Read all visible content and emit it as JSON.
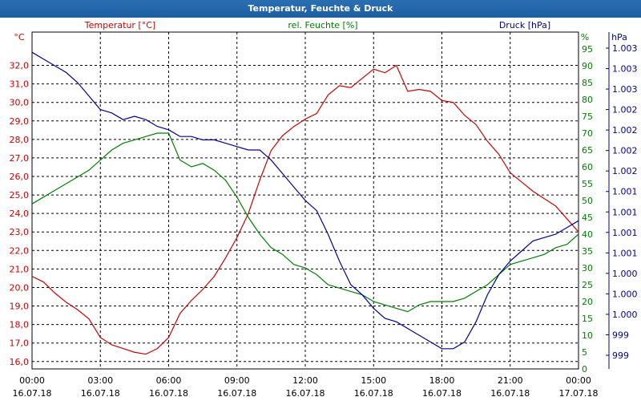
{
  "window": {
    "title": "Temperatur, Feuchte & Druck"
  },
  "colors": {
    "temperature": "#cc0000",
    "humidity": "#008000",
    "pressure": "#000099",
    "grid": "#000000",
    "titlebar": "#1d5fa0"
  },
  "chart_data": {
    "type": "line",
    "grid": true,
    "x": [
      "00:00",
      "03:00",
      "06:00",
      "09:00",
      "12:00",
      "15:00",
      "18:00",
      "21:00",
      "00:00"
    ],
    "xdates": [
      "16.07.18",
      "16.07.18",
      "16.07.18",
      "16.07.18",
      "16.07.18",
      "16.07.18",
      "16.07.18",
      "16.07.18",
      "17.07.18"
    ],
    "axes": {
      "temperature": {
        "label": "Temperatur [°C]",
        "unit": "°C",
        "ylim": [
          15.6,
          33.8
        ],
        "ticks": [
          "16,0",
          "17,0",
          "18,0",
          "19,0",
          "20,0",
          "21,0",
          "22,0",
          "23,0",
          "24,0",
          "25,0",
          "26,0",
          "27,0",
          "28,0",
          "29,0",
          "30,0",
          "31,0",
          "32,0"
        ]
      },
      "humidity": {
        "label": "rel. Feuchte [%]",
        "unit": "%",
        "ylim": [
          0,
          100
        ],
        "ticks": [
          "0",
          "5",
          "10",
          "15",
          "20",
          "25",
          "30",
          "35",
          "40",
          "45",
          "50",
          "55",
          "60",
          "65",
          "70",
          "75",
          "80",
          "85",
          "90",
          "95"
        ]
      },
      "pressure": {
        "label": "Druck [hPa]",
        "unit": "hPa",
        "ticks": [
          "999",
          "999",
          "1.000",
          "1.000",
          "1.000",
          "1.001",
          "1.001",
          "1.001",
          "1.001",
          "1.002",
          "1.002",
          "1.002",
          "1.002",
          "1.003",
          "1.003",
          "1.003"
        ]
      }
    },
    "series": [
      {
        "name": "Temperatur [°C]",
        "axis": "temperature",
        "x": [
          0,
          0.5,
          1,
          1.5,
          2,
          2.5,
          3,
          3.5,
          4,
          4.5,
          5,
          5.5,
          6,
          6.5,
          7,
          7.5,
          8,
          8.5,
          9,
          9.5,
          10,
          10.5,
          11,
          11.5,
          12,
          12.5,
          13,
          13.5,
          14,
          14.5,
          15,
          15.5,
          16,
          16.5,
          17,
          17.5,
          18,
          18.5,
          19,
          19.5,
          20,
          20.5,
          21,
          21.5,
          22,
          22.5,
          23,
          23.5,
          24
        ],
        "values": [
          20.6,
          20.3,
          19.7,
          19.2,
          18.8,
          18.3,
          17.3,
          16.9,
          16.7,
          16.5,
          16.4,
          16.7,
          17.3,
          18.6,
          19.3,
          19.9,
          20.6,
          21.6,
          22.7,
          24.0,
          25.8,
          27.4,
          28.2,
          28.7,
          29.1,
          29.4,
          30.4,
          30.9,
          30.8,
          31.3,
          31.8,
          31.6,
          32.0,
          30.6,
          30.7,
          30.6,
          30.1,
          30.0,
          29.3,
          28.8,
          27.9,
          27.2,
          26.2,
          25.7,
          25.2,
          24.8,
          24.4,
          23.7,
          23.0
        ]
      },
      {
        "name": "rel. Feuchte [%]",
        "axis": "humidity",
        "x": [
          0,
          0.5,
          1,
          1.5,
          2,
          2.5,
          3,
          3.5,
          4,
          4.5,
          5,
          5.5,
          6,
          6.5,
          7,
          7.5,
          8,
          8.5,
          9,
          9.5,
          10,
          10.5,
          11,
          11.5,
          12,
          12.5,
          13,
          13.5,
          14,
          14.5,
          15,
          15.5,
          16,
          16.5,
          17,
          17.5,
          18,
          18.5,
          19,
          19.5,
          20,
          20.5,
          21,
          21.5,
          22,
          22.5,
          23,
          23.5,
          24
        ],
        "values": [
          49,
          51,
          53,
          55,
          57,
          59,
          62,
          65,
          67,
          68,
          69,
          70,
          70,
          62,
          60,
          61,
          59,
          56,
          51,
          45,
          40,
          36,
          34,
          31,
          30,
          28,
          25,
          24,
          23,
          22,
          20,
          19,
          18,
          17,
          19,
          20,
          20,
          20,
          21,
          23,
          25,
          28,
          31,
          32,
          33,
          34,
          36,
          37,
          40
        ]
      },
      {
        "name": "Druck [hPa]",
        "x": [
          0,
          0.5,
          1,
          1.5,
          2,
          2.5,
          3,
          3.5,
          4,
          4.5,
          5,
          5.5,
          6,
          6.5,
          7,
          7.5,
          8,
          8.5,
          9,
          9.5,
          10,
          10.5,
          11,
          11.5,
          12,
          12.5,
          13,
          13.5,
          14,
          14.5,
          15,
          15.5,
          16,
          16.5,
          17,
          17.5,
          18,
          18.5,
          19,
          19.5,
          20,
          20.5,
          21,
          21.5,
          22,
          22.5,
          23,
          23.5,
          24
        ],
        "values": [
          1.003,
          1.003,
          1.003,
          1.003,
          1.003,
          1.002,
          1.002,
          1.002,
          1.002,
          1.002,
          1.002,
          1.002,
          1.002,
          1.002,
          1.002,
          1.002,
          1.002,
          1.002,
          1.002,
          1.002,
          1.002,
          1.002,
          1.001,
          1.001,
          1.001,
          1.001,
          1.001,
          1.001,
          1.0,
          1.0,
          1.0,
          999,
          999,
          999,
          999,
          999,
          999,
          999,
          999,
          999,
          1.0,
          1.0,
          1.0,
          1.0,
          1.001,
          1.001,
          1.001,
          1.001,
          1.001
        ],
        "level": [
          94,
          92,
          90,
          88,
          85,
          81,
          77,
          76,
          74,
          75,
          74,
          72,
          71,
          69,
          69,
          68,
          68,
          67,
          66,
          65,
          65,
          62,
          58,
          54,
          50,
          47,
          40,
          32,
          25,
          22,
          18,
          15,
          14,
          12,
          10,
          8,
          6,
          6,
          8,
          14,
          22,
          28,
          32,
          35,
          38,
          39,
          40,
          42,
          44
        ]
      }
    ]
  }
}
